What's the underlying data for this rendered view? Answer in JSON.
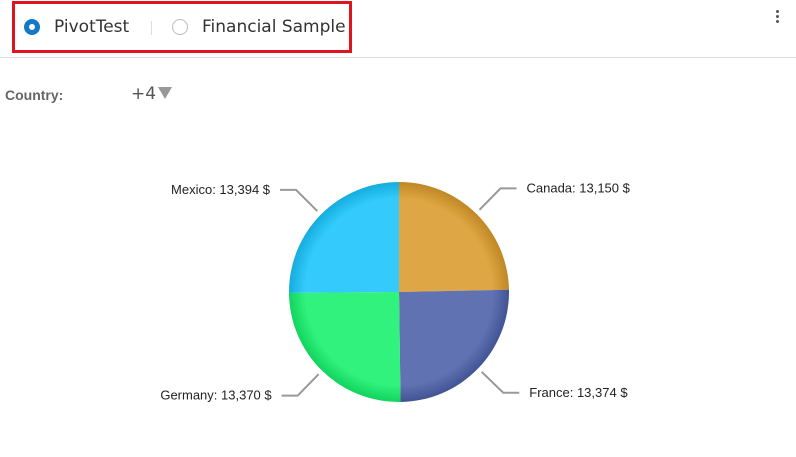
{
  "header": {
    "options": [
      {
        "label": "PivotTest",
        "selected": true
      },
      {
        "label": "Financial Sample",
        "selected": false
      }
    ],
    "more_icon": "vertical-ellipsis-icon",
    "highlight_color": "#e0141e"
  },
  "filter": {
    "label": "Country:",
    "value": "+4",
    "icon": "caret-down-icon"
  },
  "chart_data": {
    "type": "pie",
    "categories": [
      "Canada",
      "France",
      "Germany",
      "Mexico"
    ],
    "values": [
      13150,
      13374,
      13370,
      13394
    ],
    "labels": [
      "Canada: 13,150 $",
      "France: 13,374 $",
      "Germany: 13,370 $",
      "Mexico: 13,394 $"
    ],
    "colors": [
      "#d99a2a",
      "#4a5fa8",
      "#14f06a",
      "#18c4fc"
    ],
    "legend": "none"
  }
}
